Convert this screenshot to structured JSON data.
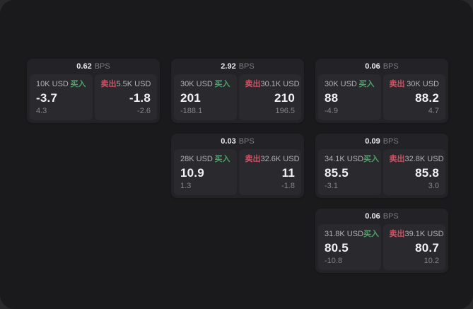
{
  "labels": {
    "bps": "BPS",
    "buy": "买入",
    "sell": "卖出"
  },
  "colors": {
    "background": "#1a1a1c",
    "card": "#232327",
    "panel": "#2a2a2e",
    "buy": "#46a566",
    "sell": "#cd5264"
  },
  "cards": [
    {
      "bps": "0.62",
      "buy": {
        "size": "10K USD",
        "price": "-3.7",
        "delta": "4.3"
      },
      "sell": {
        "size": "5.5K USD",
        "price": "-1.8",
        "delta": "-2.6"
      }
    },
    {
      "bps": "2.92",
      "buy": {
        "size": "30K USD",
        "price": "201",
        "delta": "-188.1"
      },
      "sell": {
        "size": "30.1K USD",
        "price": "210",
        "delta": "196.5"
      }
    },
    {
      "bps": "0.06",
      "buy": {
        "size": "30K USD",
        "price": "88",
        "delta": "-4.9"
      },
      "sell": {
        "size": "30K USD",
        "price": "88.2",
        "delta": "4.7"
      }
    },
    {
      "bps": "0.03",
      "buy": {
        "size": "28K USD",
        "price": "10.9",
        "delta": "1.3"
      },
      "sell": {
        "size": "32.6K USD",
        "price": "11",
        "delta": "-1.8"
      }
    },
    {
      "bps": "0.09",
      "buy": {
        "size": "34.1K USD",
        "price": "85.5",
        "delta": "-3.1"
      },
      "sell": {
        "size": "32.8K USD",
        "price": "85.8",
        "delta": "3.0"
      }
    },
    {
      "bps": "0.06",
      "buy": {
        "size": "31.8K USD",
        "price": "80.5",
        "delta": "-10.8"
      },
      "sell": {
        "size": "39.1K USD",
        "price": "80.7",
        "delta": "10.2"
      }
    }
  ]
}
